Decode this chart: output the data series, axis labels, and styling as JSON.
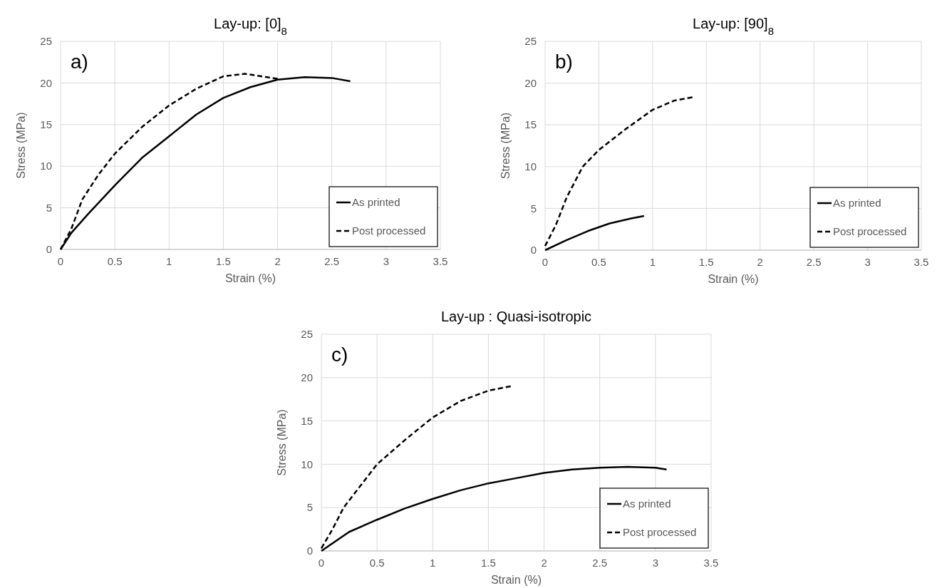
{
  "chart_data": [
    {
      "type": "line",
      "title": "Lay-up: [0]$_{8}$",
      "xlabel": "Strain (%)",
      "ylabel": "Stress (MPa)",
      "annotations": [
        "a)"
      ],
      "xlim": [
        0,
        3.5
      ],
      "xticks": [
        0,
        0.5,
        1,
        1.5,
        2,
        2.5,
        3,
        3.5
      ],
      "ylim": [
        0,
        25
      ],
      "yticks": [
        0,
        5,
        10,
        15,
        20,
        25
      ],
      "grid": true,
      "legend": "bottom right",
      "series": [
        {
          "name": "As printed",
          "color": "#000000",
          "line_style": "solid",
          "x": [
            0,
            0.1,
            0.25,
            0.5,
            0.75,
            1,
            1.25,
            1.5,
            1.75,
            2,
            2.25,
            2.5,
            2.67
          ],
          "values": [
            0,
            2,
            4.2,
            7.7,
            11,
            13.6,
            16.2,
            18.2,
            19.5,
            20.4,
            20.7,
            20.6,
            20.2
          ]
        },
        {
          "name": "Post processed",
          "color": "#000000",
          "line_style": "dashed",
          "x": [
            0,
            0.1,
            0.2,
            0.35,
            0.5,
            0.75,
            1,
            1.25,
            1.5,
            1.7,
            1.85,
            2
          ],
          "values": [
            0,
            2.5,
            6,
            9,
            11.5,
            14.7,
            17.3,
            19.3,
            20.8,
            21.1,
            20.8,
            20.5
          ]
        }
      ]
    },
    {
      "type": "line",
      "title": "Lay-up: [90]$_{8}$",
      "xlabel": "Strain (%)",
      "ylabel": "Stress (MPa)",
      "annotations": [
        "b)"
      ],
      "xlim": [
        0,
        3.5
      ],
      "xticks": [
        0,
        0.5,
        1,
        1.5,
        2,
        2.5,
        3,
        3.5
      ],
      "ylim": [
        0,
        25
      ],
      "yticks": [
        0,
        5,
        10,
        15,
        20,
        25
      ],
      "grid": true,
      "legend": "bottom right",
      "series": [
        {
          "name": "As printed",
          "color": "#000000",
          "line_style": "solid",
          "x": [
            0,
            0.2,
            0.4,
            0.6,
            0.8,
            0.92
          ],
          "values": [
            0,
            1.2,
            2.3,
            3.2,
            3.8,
            4.1
          ]
        },
        {
          "name": "Post processed",
          "color": "#000000",
          "line_style": "dashed",
          "x": [
            0,
            0.1,
            0.2,
            0.35,
            0.5,
            0.75,
            1,
            1.2,
            1.37
          ],
          "values": [
            0.5,
            3,
            6.3,
            10,
            12,
            14.5,
            16.8,
            17.9,
            18.3
          ]
        }
      ]
    },
    {
      "type": "line",
      "title": "Lay-up : Quasi-isotropic",
      "xlabel": "Strain (%)",
      "ylabel": "Stress (MPa)",
      "annotations": [
        "c)"
      ],
      "xlim": [
        0,
        3.5
      ],
      "xticks": [
        0,
        0.5,
        1,
        1.5,
        2,
        2.5,
        3,
        3.5
      ],
      "ylim": [
        0,
        25
      ],
      "yticks": [
        0,
        5,
        10,
        15,
        20,
        25
      ],
      "grid": true,
      "legend": "bottom right",
      "series": [
        {
          "name": "As printed",
          "color": "#000000",
          "line_style": "solid",
          "x": [
            0,
            0.25,
            0.5,
            0.75,
            1,
            1.25,
            1.5,
            1.75,
            2,
            2.25,
            2.5,
            2.75,
            3,
            3.1
          ],
          "values": [
            0,
            2.2,
            3.6,
            4.9,
            6,
            7,
            7.8,
            8.4,
            9,
            9.4,
            9.6,
            9.7,
            9.6,
            9.4
          ]
        },
        {
          "name": "Post processed",
          "color": "#000000",
          "line_style": "dashed",
          "x": [
            0,
            0.1,
            0.2,
            0.35,
            0.5,
            0.75,
            1,
            1.25,
            1.5,
            1.7
          ],
          "values": [
            0.3,
            2.5,
            5,
            7.5,
            10,
            12.8,
            15.4,
            17.3,
            18.5,
            19
          ]
        }
      ]
    }
  ]
}
